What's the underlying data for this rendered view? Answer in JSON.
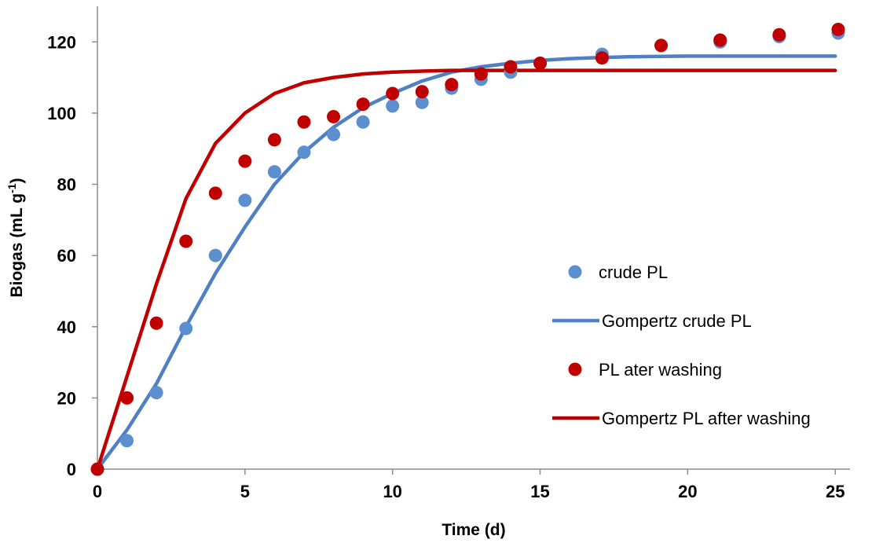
{
  "chart_data": {
    "type": "scatter",
    "xlabel": "Time (d)",
    "ylabel": {
      "base": "Biogas (mL g",
      "sup": "-1",
      "close": ")"
    },
    "xlim": [
      0,
      25.5
    ],
    "ylim": [
      0,
      130
    ],
    "x_ticks": [
      0,
      5,
      10,
      15,
      20,
      25
    ],
    "y_ticks": [
      0,
      20,
      40,
      60,
      80,
      100,
      120
    ],
    "grid": false,
    "legend_position": "right",
    "series": [
      {
        "name": "crude PL",
        "kind": "points",
        "color": "#5b8fd0",
        "x": [
          0,
          1,
          2,
          3,
          4,
          5,
          6,
          7,
          8,
          9,
          10,
          11,
          12,
          13,
          14,
          15,
          17.1,
          19.1,
          21.1,
          23.1,
          25.1
        ],
        "y": [
          0,
          8,
          21.5,
          39.5,
          60,
          75.5,
          83.5,
          89,
          94,
          97.5,
          102,
          103,
          107,
          109.5,
          111.5,
          114,
          116.5,
          119,
          120,
          121.5,
          122.5
        ]
      },
      {
        "name": "Gompertz crude PL",
        "kind": "line",
        "color": "#4f7fc4",
        "x": [
          0,
          1,
          2,
          3,
          4,
          5,
          6,
          7,
          8,
          9,
          10,
          11,
          12,
          13,
          14,
          15,
          16,
          17,
          18,
          20,
          22,
          25
        ],
        "y": [
          0,
          11,
          24,
          40,
          55,
          68,
          80,
          89,
          96,
          101.5,
          105.5,
          109,
          111.5,
          113,
          114,
          114.8,
          115.3,
          115.6,
          115.8,
          116,
          116,
          116
        ]
      },
      {
        "name": "PL ater washing",
        "kind": "points",
        "color": "#c00000",
        "x": [
          0,
          1,
          2,
          3,
          4,
          5,
          6,
          7,
          8,
          9,
          10,
          11,
          12,
          13,
          14,
          15,
          17.1,
          19.1,
          21.1,
          23.1,
          25.1
        ],
        "y": [
          0,
          20,
          41,
          64,
          77.5,
          86.5,
          92.5,
          97.5,
          99,
          102.5,
          105.5,
          106,
          108,
          111,
          113,
          114,
          115.5,
          119,
          120.5,
          122,
          123.5
        ]
      },
      {
        "name": "Gompertz PL after washing",
        "kind": "line",
        "color": "#c00000",
        "x": [
          0,
          1,
          2,
          3,
          4,
          5,
          6,
          7,
          8,
          9,
          10,
          11,
          12,
          13,
          14,
          15,
          20,
          25
        ],
        "y": [
          0,
          26,
          52,
          76,
          91.5,
          100,
          105.5,
          108.5,
          110,
          111,
          111.5,
          111.8,
          112,
          112,
          112,
          112,
          112,
          112
        ]
      }
    ]
  }
}
